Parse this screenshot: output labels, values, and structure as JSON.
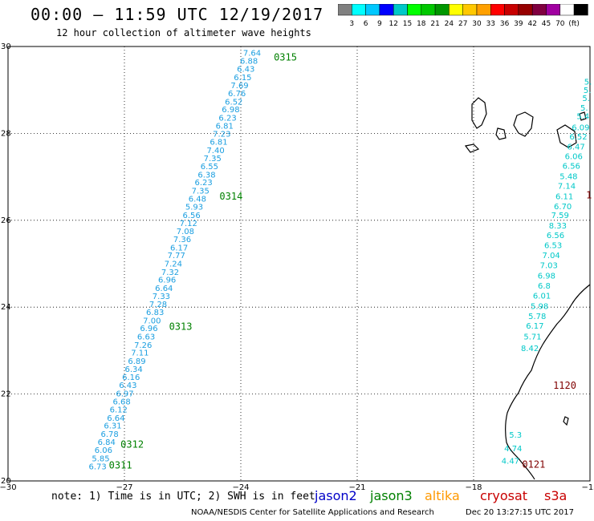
{
  "header": {
    "title": "00:00 – 11:59 UTC 12/19/2017",
    "subtitle": "12 hour collection of altimeter wave heights"
  },
  "legend": {
    "colors": [
      "#808080",
      "#00ffff",
      "#00c8ff",
      "#0000ff",
      "#00c8c8",
      "#00ff00",
      "#00c800",
      "#009600",
      "#ffff00",
      "#ffc800",
      "#ffa000",
      "#ff0000",
      "#c80000",
      "#960000",
      "#800040",
      "#a000a0",
      "#ffffff",
      "#000000"
    ],
    "labels": [
      "3",
      "6",
      "9",
      "12",
      "15",
      "18",
      "21",
      "24",
      "27",
      "30",
      "33",
      "36",
      "39",
      "42",
      "45",
      "70",
      "(ft)"
    ]
  },
  "map": {
    "axes": {
      "x_ticks": [
        "−30",
        "−27",
        "−24",
        "−21",
        "−18",
        "−15"
      ],
      "y_ticks": [
        "30",
        "28",
        "26",
        "24",
        "22",
        "20"
      ],
      "x_range": [
        -30,
        -15
      ],
      "y_range": [
        20,
        30
      ]
    },
    "track_left": {
      "color": "#1a9ee0",
      "points": [
        {
          "lat": 29.86,
          "lon": -23.71,
          "v": "7.64"
        },
        {
          "lat": 29.68,
          "lon": -23.79,
          "v": "6.88"
        },
        {
          "lat": 29.49,
          "lon": -23.87,
          "v": "6.43"
        },
        {
          "lat": 29.3,
          "lon": -23.95,
          "v": "6.15"
        },
        {
          "lat": 29.11,
          "lon": -24.03,
          "v": "7.69"
        },
        {
          "lat": 28.93,
          "lon": -24.1,
          "v": "6.76"
        },
        {
          "lat": 28.74,
          "lon": -24.18,
          "v": "6.52"
        },
        {
          "lat": 28.56,
          "lon": -24.26,
          "v": "6.98"
        },
        {
          "lat": 28.37,
          "lon": -24.34,
          "v": "6.23"
        },
        {
          "lat": 28.18,
          "lon": -24.42,
          "v": "6.81"
        },
        {
          "lat": 28.0,
          "lon": -24.49,
          "v": "7.23"
        },
        {
          "lat": 27.81,
          "lon": -24.57,
          "v": "6.81"
        },
        {
          "lat": 27.62,
          "lon": -24.65,
          "v": "7.40"
        },
        {
          "lat": 27.44,
          "lon": -24.73,
          "v": "7.35"
        },
        {
          "lat": 27.25,
          "lon": -24.81,
          "v": "6.55"
        },
        {
          "lat": 27.06,
          "lon": -24.88,
          "v": "6.38"
        },
        {
          "lat": 26.88,
          "lon": -24.96,
          "v": "6.23"
        },
        {
          "lat": 26.69,
          "lon": -25.04,
          "v": "7.35"
        },
        {
          "lat": 26.5,
          "lon": -25.12,
          "v": "6.48"
        },
        {
          "lat": 26.32,
          "lon": -25.2,
          "v": "5.93"
        },
        {
          "lat": 26.13,
          "lon": -25.27,
          "v": "6.56"
        },
        {
          "lat": 25.94,
          "lon": -25.35,
          "v": "7.12"
        },
        {
          "lat": 25.76,
          "lon": -25.43,
          "v": "7.08"
        },
        {
          "lat": 25.57,
          "lon": -25.51,
          "v": "7.36"
        },
        {
          "lat": 25.38,
          "lon": -25.59,
          "v": "6.17"
        },
        {
          "lat": 25.2,
          "lon": -25.66,
          "v": "7.77"
        },
        {
          "lat": 25.01,
          "lon": -25.74,
          "v": "7.24"
        },
        {
          "lat": 24.82,
          "lon": -25.82,
          "v": "7.32"
        },
        {
          "lat": 24.64,
          "lon": -25.9,
          "v": "6.96"
        },
        {
          "lat": 24.45,
          "lon": -25.98,
          "v": "6.64"
        },
        {
          "lat": 24.26,
          "lon": -26.05,
          "v": "7.33"
        },
        {
          "lat": 24.08,
          "lon": -26.13,
          "v": "7.28"
        },
        {
          "lat": 23.89,
          "lon": -26.21,
          "v": "6.83"
        },
        {
          "lat": 23.7,
          "lon": -26.29,
          "v": "7.00"
        },
        {
          "lat": 23.52,
          "lon": -26.37,
          "v": "6.96"
        },
        {
          "lat": 23.33,
          "lon": -26.44,
          "v": "6.63"
        },
        {
          "lat": 23.14,
          "lon": -26.52,
          "v": "7.26"
        },
        {
          "lat": 22.96,
          "lon": -26.6,
          "v": "7.11"
        },
        {
          "lat": 22.77,
          "lon": -26.68,
          "v": "6.89"
        },
        {
          "lat": 22.58,
          "lon": -26.76,
          "v": "6.34"
        },
        {
          "lat": 22.4,
          "lon": -26.83,
          "v": "6.16"
        },
        {
          "lat": 22.21,
          "lon": -26.91,
          "v": "6.43"
        },
        {
          "lat": 22.02,
          "lon": -26.99,
          "v": "6.97"
        },
        {
          "lat": 21.84,
          "lon": -27.07,
          "v": "6.68"
        },
        {
          "lat": 21.65,
          "lon": -27.15,
          "v": "6.12"
        },
        {
          "lat": 21.46,
          "lon": -27.22,
          "v": "6.64"
        },
        {
          "lat": 21.28,
          "lon": -27.3,
          "v": "6.31"
        },
        {
          "lat": 21.09,
          "lon": -27.38,
          "v": "6.78"
        },
        {
          "lat": 20.9,
          "lon": -27.46,
          "v": "6.84"
        },
        {
          "lat": 20.72,
          "lon": -27.54,
          "v": "6.06"
        },
        {
          "lat": 20.53,
          "lon": -27.61,
          "v": "5.85"
        },
        {
          "lat": 20.34,
          "lon": -27.69,
          "v": "6.73"
        }
      ]
    },
    "track_right": {
      "color": "#00c8c8",
      "points": [
        {
          "lat": 29.2,
          "lon": -15.05,
          "v": "5."
        },
        {
          "lat": 29.0,
          "lon": -15.07,
          "v": "5."
        },
        {
          "lat": 28.82,
          "lon": -15.1,
          "v": "5."
        },
        {
          "lat": 28.6,
          "lon": -15.15,
          "v": "5."
        },
        {
          "lat": 28.4,
          "lon": -15.18,
          "v": "5.4"
        },
        {
          "lat": 28.15,
          "lon": -15.24,
          "v": "6.09"
        },
        {
          "lat": 27.93,
          "lon": -15.3,
          "v": "6.52"
        },
        {
          "lat": 27.7,
          "lon": -15.36,
          "v": "6.47"
        },
        {
          "lat": 27.48,
          "lon": -15.42,
          "v": "6.06"
        },
        {
          "lat": 27.26,
          "lon": -15.48,
          "v": "6.56"
        },
        {
          "lat": 27.02,
          "lon": -15.55,
          "v": "5.48"
        },
        {
          "lat": 26.8,
          "lon": -15.6,
          "v": "7.14"
        },
        {
          "lat": 26.56,
          "lon": -15.66,
          "v": "6.11"
        },
        {
          "lat": 26.33,
          "lon": -15.7,
          "v": "6.70"
        },
        {
          "lat": 26.13,
          "lon": -15.77,
          "v": "7.59"
        },
        {
          "lat": 25.89,
          "lon": -15.83,
          "v": "8.33"
        },
        {
          "lat": 25.66,
          "lon": -15.89,
          "v": "6.56"
        },
        {
          "lat": 25.43,
          "lon": -15.95,
          "v": "6.53"
        },
        {
          "lat": 25.2,
          "lon": -16.0,
          "v": "7.04"
        },
        {
          "lat": 24.97,
          "lon": -16.06,
          "v": "7.03"
        },
        {
          "lat": 24.73,
          "lon": -16.12,
          "v": "6.98"
        },
        {
          "lat": 24.5,
          "lon": -16.18,
          "v": "6.8"
        },
        {
          "lat": 24.27,
          "lon": -16.24,
          "v": "6.01"
        },
        {
          "lat": 24.03,
          "lon": -16.3,
          "v": "5.98"
        },
        {
          "lat": 23.8,
          "lon": -16.36,
          "v": "5.78"
        },
        {
          "lat": 23.58,
          "lon": -16.42,
          "v": "6.17"
        },
        {
          "lat": 23.33,
          "lon": -16.48,
          "v": "5.71"
        },
        {
          "lat": 23.06,
          "lon": -16.55,
          "v": "8.42"
        },
        {
          "lat": 21.07,
          "lon": -16.92,
          "v": "5.3"
        },
        {
          "lat": 20.76,
          "lon": -16.98,
          "v": "4.74"
        },
        {
          "lat": 20.47,
          "lon": -17.05,
          "v": "4.47"
        }
      ]
    },
    "time_labels": [
      {
        "text": "0315",
        "lat": 29.75,
        "lon": -23.15,
        "color": "#008000"
      },
      {
        "text": "0314",
        "lat": 26.55,
        "lon": -24.55,
        "color": "#008000"
      },
      {
        "text": "0313",
        "lat": 23.55,
        "lon": -25.85,
        "color": "#008000"
      },
      {
        "text": "0312",
        "lat": 20.84,
        "lon": -27.1,
        "color": "#008000"
      },
      {
        "text": "0311",
        "lat": 20.36,
        "lon": -27.4,
        "color": "#008000"
      },
      {
        "text": "1120",
        "lat": 22.2,
        "lon": -15.95,
        "color": "#800000"
      },
      {
        "text": "0121",
        "lat": 20.38,
        "lon": -16.75,
        "color": "#800000"
      },
      {
        "text": "1",
        "lat": 26.58,
        "lon": -15.1,
        "color": "#800000"
      }
    ]
  },
  "footer": {
    "note": "note: 1) Time is in UTC; 2) SWH is in feet",
    "satellites": [
      {
        "name": "jason2",
        "color": "#0000c8"
      },
      {
        "name": "jason3",
        "color": "#008000"
      },
      {
        "name": "altika",
        "color": "#ff9900"
      },
      {
        "name": "cryosat",
        "color": "#c80000"
      },
      {
        "name": "s3a",
        "color": "#c80000"
      }
    ],
    "credit": "NOAA/NESDIS Center for Satellite Applications and Research",
    "generated": "Dec 20 13:27:15 UTC 2017"
  }
}
